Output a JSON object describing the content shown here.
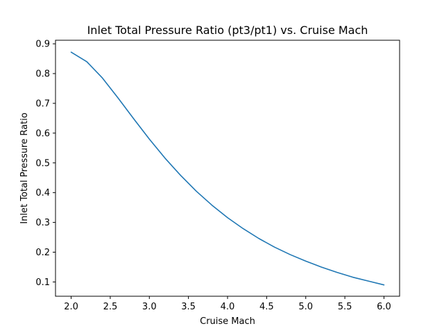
{
  "chart_data": {
    "type": "line",
    "title": "Inlet Total Pressure Ratio (pt3/pt1) vs. Cruise Mach",
    "xlabel": "Cruise Mach",
    "ylabel": "Inlet Total Pressure Ratio",
    "xlim": [
      1.8,
      6.2
    ],
    "ylim": [
      0.052,
      0.912
    ],
    "xticks": [
      2.0,
      2.5,
      3.0,
      3.5,
      4.0,
      4.5,
      5.0,
      5.5,
      6.0
    ],
    "xtick_labels": [
      "2.0",
      "2.5",
      "3.0",
      "3.5",
      "4.0",
      "4.5",
      "5.0",
      "5.5",
      "6.0"
    ],
    "yticks": [
      0.1,
      0.2,
      0.3,
      0.4,
      0.5,
      0.6,
      0.7,
      0.8,
      0.9
    ],
    "ytick_labels": [
      "0.1",
      "0.2",
      "0.3",
      "0.4",
      "0.5",
      "0.6",
      "0.7",
      "0.8",
      "0.9"
    ],
    "grid": false,
    "series": [
      {
        "color": "#1f77b4",
        "x": [
          2.0,
          2.2,
          2.4,
          2.6,
          2.8,
          3.0,
          3.2,
          3.4,
          3.6,
          3.8,
          4.0,
          4.2,
          4.4,
          4.6,
          4.8,
          5.0,
          5.2,
          5.4,
          5.6,
          5.8,
          6.0
        ],
        "y": [
          0.872,
          0.84,
          0.785,
          0.718,
          0.648,
          0.58,
          0.516,
          0.458,
          0.405,
          0.358,
          0.316,
          0.279,
          0.246,
          0.217,
          0.192,
          0.17,
          0.15,
          0.132,
          0.116,
          0.103,
          0.09
        ]
      }
    ]
  }
}
